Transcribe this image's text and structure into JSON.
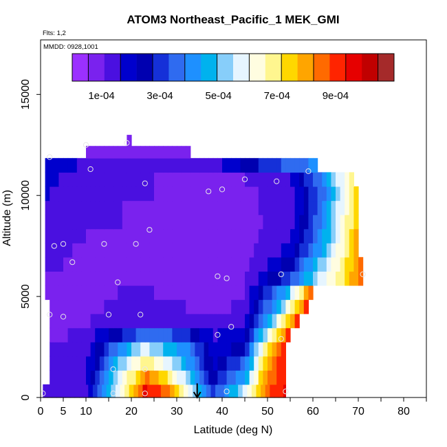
{
  "chart_data": {
    "type": "heatmap",
    "title": "ATOM3 Northeast_Pacific_1 MEK_GMI",
    "flights_label": "Flts: 1,2",
    "dates_label": "MMDD: 0928,1001",
    "xlabel": "Latitude (deg N)",
    "ylabel": "Altitude (m)",
    "xlim": [
      0,
      85
    ],
    "ylim": [
      0,
      17700
    ],
    "x_ticks": [
      0,
      5,
      10,
      20,
      30,
      40,
      50,
      60,
      70,
      80
    ],
    "y_ticks": [
      0,
      5000,
      10000,
      15000
    ],
    "colorbar": {
      "min": 0.0,
      "max": 0.0011,
      "tick_values": [
        0.0001,
        0.0003,
        0.0005,
        0.0007,
        0.0009
      ],
      "tick_labels": [
        "1e-04",
        "3e-04",
        "5e-04",
        "7e-04",
        "9e-04"
      ],
      "colors": [
        "#9b30ff",
        "#7a22ee",
        "#4a10e0",
        "#0000cd",
        "#0000b0",
        "#1530d8",
        "#2f6bf0",
        "#1e90ff",
        "#00b2ee",
        "#87cefa",
        "#e6f5ff",
        "#fffde0",
        "#fff68f",
        "#ffd700",
        "#ffa500",
        "#ff6a00",
        "#ff2400",
        "#e60000",
        "#c00000",
        "#a52a2a"
      ]
    },
    "grid": false,
    "model_field_rows": [
      {
        "alt": 300,
        "x_start": 0.5,
        "x_end": 54,
        "lat_points": [
          0,
          10,
          18,
          23,
          27,
          33,
          38,
          45,
          50,
          54
        ],
        "values": [
          0.00013,
          0.00016,
          0.00062,
          0.00094,
          0.00088,
          0.00055,
          0.0003,
          0.00055,
          0.00088,
          0.00094
        ]
      },
      {
        "alt": 1000,
        "x_start": 2,
        "x_end": 54,
        "lat_points": [
          2,
          10,
          18,
          23,
          27,
          33,
          38,
          45,
          50,
          54
        ],
        "values": [
          0.00012,
          0.00016,
          0.00058,
          0.00085,
          0.00075,
          0.0005,
          0.00025,
          0.00045,
          0.00085,
          0.00093
        ]
      },
      {
        "alt": 1700,
        "x_start": 2,
        "x_end": 54,
        "lat_points": [
          2,
          10,
          18,
          23,
          27,
          33,
          38,
          45,
          50,
          54
        ],
        "values": [
          0.00012,
          0.00015,
          0.00052,
          0.0007,
          0.00062,
          0.00042,
          0.00021,
          0.00035,
          0.0008,
          0.00093
        ]
      },
      {
        "alt": 2400,
        "x_start": 2,
        "x_end": 54,
        "lat_points": [
          2,
          10,
          18,
          23,
          27,
          33,
          38,
          45,
          50,
          54
        ],
        "values": [
          0.00011,
          0.00014,
          0.00042,
          0.00057,
          0.0005,
          0.00038,
          0.00018,
          0.00026,
          0.00074,
          0.00092
        ]
      },
      {
        "alt": 3100,
        "x_start": 2,
        "x_end": 55,
        "lat_points": [
          2,
          10,
          18,
          23,
          27,
          33,
          38,
          45,
          51,
          55
        ],
        "values": [
          0.0001,
          0.00012,
          0.00028,
          0.00037,
          0.00035,
          0.00028,
          0.00016,
          0.0002,
          0.00066,
          0.00092
        ]
      },
      {
        "alt": 3800,
        "x_start": 2,
        "x_end": 57,
        "lat_points": [
          2,
          10,
          18,
          25,
          32,
          38,
          45,
          52,
          57
        ],
        "values": [
          8e-05,
          0.0001,
          0.00016,
          0.00016,
          0.00014,
          0.00012,
          0.00015,
          0.00058,
          0.00092
        ]
      },
      {
        "alt": 4500,
        "x_start": 2,
        "x_end": 59,
        "lat_points": [
          2,
          10,
          18,
          25,
          32,
          38,
          45,
          53,
          59
        ],
        "values": [
          6e-05,
          8e-05,
          0.00014,
          0.00012,
          0.00011,
          0.0001,
          0.00012,
          0.0005,
          0.00092
        ]
      },
      {
        "alt": 5200,
        "x_start": 1,
        "x_end": 60,
        "lat_points": [
          1,
          10,
          18,
          25,
          32,
          38,
          45,
          54,
          60
        ],
        "values": [
          7e-05,
          6e-05,
          0.00012,
          0.00011,
          0.0001,
          9e-05,
          0.00011,
          0.00045,
          0.0009
        ]
      },
      {
        "alt": 5900,
        "x_start": 1,
        "x_end": 71,
        "lat_points": [
          1,
          10,
          18,
          25,
          32,
          38,
          45,
          55,
          62,
          71
        ],
        "values": [
          0.0001,
          7e-05,
          0.00011,
          0.0001,
          9e-05,
          8e-05,
          0.0001,
          0.00032,
          0.00058,
          0.00085
        ]
      },
      {
        "alt": 6600,
        "x_start": 1,
        "x_end": 71,
        "lat_points": [
          1,
          10,
          18,
          25,
          32,
          38,
          45,
          55,
          62,
          71
        ],
        "values": [
          0.00013,
          9e-05,
          0.0001,
          9e-05,
          8e-05,
          8e-05,
          9e-05,
          0.00025,
          0.00052,
          0.00085
        ]
      },
      {
        "alt": 7300,
        "x_start": 1,
        "x_end": 70,
        "lat_points": [
          1,
          10,
          18,
          25,
          32,
          38,
          45,
          55,
          62,
          70
        ],
        "values": [
          0.00013,
          0.0001,
          0.0001,
          9e-05,
          8e-05,
          8e-05,
          9e-05,
          0.00018,
          0.00045,
          0.00082
        ]
      },
      {
        "alt": 8000,
        "x_start": 1,
        "x_end": 70,
        "lat_points": [
          1,
          10,
          18,
          25,
          32,
          38,
          45,
          55,
          62,
          70
        ],
        "values": [
          0.00014,
          0.00011,
          0.0001,
          9e-05,
          8e-05,
          8e-05,
          9e-05,
          0.00016,
          0.00042,
          0.0008
        ]
      },
      {
        "alt": 8700,
        "x_start": 1,
        "x_end": 70,
        "lat_points": [
          1,
          10,
          18,
          25,
          32,
          38,
          45,
          55,
          62,
          70
        ],
        "values": [
          0.00015,
          0.00012,
          0.00011,
          0.0001,
          9e-05,
          9e-05,
          9e-05,
          0.00014,
          0.0004,
          0.00078
        ]
      },
      {
        "alt": 9400,
        "x_start": 1,
        "x_end": 70,
        "lat_points": [
          1,
          10,
          18,
          25,
          32,
          38,
          45,
          55,
          62,
          70
        ],
        "values": [
          0.00016,
          0.00012,
          0.00011,
          0.0001,
          0.0001,
          9e-05,
          0.0001,
          0.00013,
          0.00038,
          0.00077
        ]
      },
      {
        "alt": 10100,
        "x_start": 1,
        "x_end": 70,
        "lat_points": [
          1,
          10,
          18,
          25,
          32,
          38,
          45,
          55,
          62,
          70
        ],
        "values": [
          0.00017,
          0.00013,
          0.00012,
          0.00011,
          0.0001,
          0.0001,
          0.0001,
          0.00013,
          0.00036,
          0.00075
        ]
      },
      {
        "alt": 10800,
        "x_start": 1,
        "x_end": 69,
        "lat_points": [
          1,
          10,
          18,
          25,
          32,
          38,
          45,
          55,
          62,
          69
        ],
        "values": [
          0.00018,
          0.00014,
          0.00012,
          0.00011,
          0.0001,
          0.0001,
          0.00011,
          0.00016,
          0.0004,
          0.0007
        ]
      },
      {
        "alt": 11500,
        "x_start": 1,
        "x_end": 61,
        "lat_points": [
          1,
          10,
          18,
          25,
          32,
          38,
          45,
          55,
          61
        ],
        "values": [
          0.00022,
          0.00015,
          0.00013,
          0.00012,
          0.00011,
          0.00013,
          0.00023,
          0.00036,
          0.0004
        ]
      },
      {
        "alt": 12200,
        "x_start": 10,
        "x_end": 33,
        "lat_points": [
          10,
          18,
          25,
          33
        ],
        "values": [
          8e-05,
          9e-05,
          9e-05,
          0.0001
        ]
      },
      {
        "alt": 12700,
        "x_start": 19,
        "x_end": 20,
        "lat_points": [
          19,
          20
        ],
        "values": [
          9e-05,
          9e-05
        ]
      }
    ],
    "observations": [
      {
        "lat": 0.5,
        "alt": 200
      },
      {
        "lat": 2,
        "alt": 11900
      },
      {
        "lat": 3,
        "alt": 7500
      },
      {
        "lat": 2,
        "alt": 4100
      },
      {
        "lat": 5,
        "alt": 7600
      },
      {
        "lat": 5,
        "alt": 4000
      },
      {
        "lat": 7,
        "alt": 6700
      },
      {
        "lat": 10,
        "alt": 12500
      },
      {
        "lat": 11,
        "alt": 11300
      },
      {
        "lat": 14,
        "alt": 7600
      },
      {
        "lat": 15,
        "alt": 4100
      },
      {
        "lat": 16,
        "alt": 200
      },
      {
        "lat": 16,
        "alt": 1400
      },
      {
        "lat": 17,
        "alt": 5700
      },
      {
        "lat": 19,
        "alt": 12600
      },
      {
        "lat": 21,
        "alt": 7600
      },
      {
        "lat": 22,
        "alt": 4100
      },
      {
        "lat": 23,
        "alt": 200
      },
      {
        "lat": 23,
        "alt": 1400
      },
      {
        "lat": 23,
        "alt": 10600
      },
      {
        "lat": 24,
        "alt": 8300
      },
      {
        "lat": 37,
        "alt": 10200
      },
      {
        "lat": 39,
        "alt": 6000
      },
      {
        "lat": 39,
        "alt": 3100
      },
      {
        "lat": 40,
        "alt": 10300
      },
      {
        "lat": 41,
        "alt": 5900
      },
      {
        "lat": 41,
        "alt": 300
      },
      {
        "lat": 42,
        "alt": 3500
      },
      {
        "lat": 45,
        "alt": 10800
      },
      {
        "lat": 52,
        "alt": 10700
      },
      {
        "lat": 53,
        "alt": 6100
      },
      {
        "lat": 53,
        "alt": 2900
      },
      {
        "lat": 54,
        "alt": 300
      },
      {
        "lat": 59,
        "alt": 11200
      },
      {
        "lat": 71,
        "alt": 6100
      }
    ],
    "marker_arrow": {
      "lat": 34.5,
      "alt_top": 700,
      "alt_bottom": 0
    }
  }
}
